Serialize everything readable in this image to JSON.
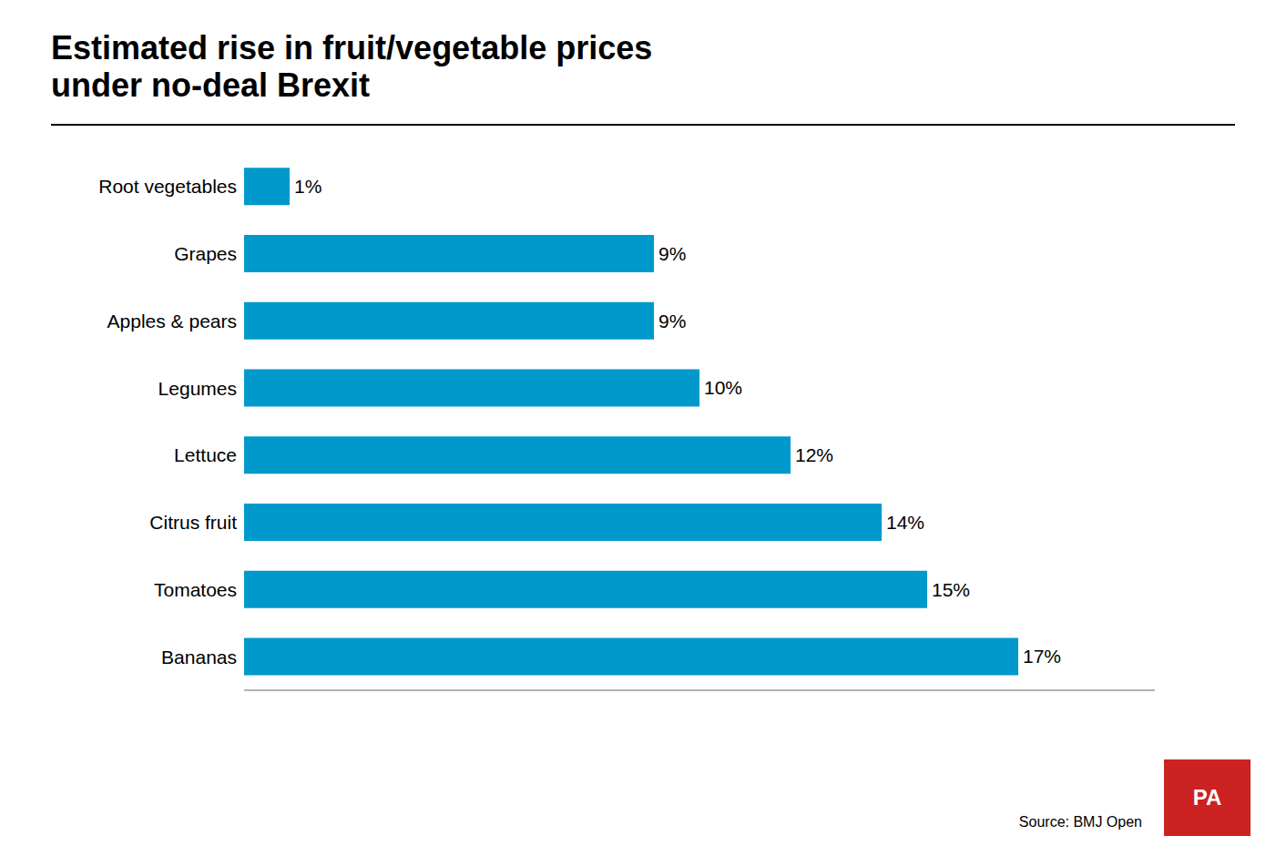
{
  "chart_data": {
    "type": "bar",
    "orientation": "horizontal",
    "title": "Estimated rise in fruit/vegetable prices\nunder no-deal Brexit",
    "categories": [
      "Root vegetables",
      "Grapes",
      "Apples & pears",
      "Legumes",
      "Lettuce",
      "Citrus fruit",
      "Tomatoes",
      "Bananas"
    ],
    "values": [
      1,
      9,
      9,
      10,
      12,
      14,
      15,
      17
    ],
    "value_labels": [
      "1%",
      "9%",
      "9%",
      "10%",
      "12%",
      "14%",
      "15%",
      "17%"
    ],
    "data_labels": true,
    "color": "#0099CC",
    "xlim": [
      0,
      20
    ],
    "grid": false,
    "tick_labels": "y",
    "annotations": [
      {
        "text": "Source: BMJ Open"
      },
      {
        "text": "PA",
        "color": "#CC2222"
      }
    ]
  }
}
